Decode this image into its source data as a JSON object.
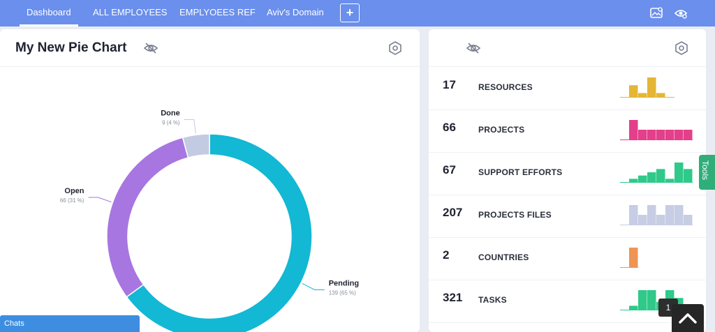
{
  "nav": {
    "tabs": [
      {
        "label": "Dashboard",
        "active": true
      },
      {
        "label": "ALL EMPLOYEES",
        "active": false
      },
      {
        "label": "EMPLYOEES REF",
        "active": false
      },
      {
        "label": "Aviv's Domain",
        "active": false
      }
    ],
    "add_tab_label": "+",
    "icons": [
      "image-settings-icon",
      "eye-settings-icon"
    ]
  },
  "pie_panel": {
    "title": "My New Pie Chart",
    "header_icons": [
      "eye-off-icon",
      "settings-hex-icon"
    ]
  },
  "chart_data": {
    "type": "pie",
    "variant": "donut",
    "slices": [
      {
        "label": "Pending",
        "value": 139,
        "percent_label": "139 (65 %)",
        "color": "#12b8d4"
      },
      {
        "label": "Open",
        "value": 66,
        "percent_label": "66 (31 %)",
        "color": "#a876e0"
      },
      {
        "label": "Done",
        "value": 9,
        "percent_label": "9 (4 %)",
        "color": "#c3cbe2"
      }
    ]
  },
  "stats_panel": {
    "header_icons": [
      "eye-off-icon",
      "settings-hex-icon"
    ],
    "rows": [
      {
        "count": "17",
        "label": "RESOURCES",
        "color": "#e5b635",
        "spark": [
          0,
          3,
          1,
          5,
          1,
          0
        ]
      },
      {
        "count": "66",
        "label": "PROJECTS",
        "color": "#e33f8a",
        "spark": [
          0,
          6,
          3,
          3,
          3,
          3,
          3,
          3
        ]
      },
      {
        "count": "67",
        "label": "SUPPORT EFFORTS",
        "color": "#2fc98a",
        "spark": [
          0,
          1,
          2,
          3,
          4,
          1,
          6,
          4
        ]
      },
      {
        "count": "207",
        "label": "PROJECTS FILES",
        "color": "#c6cde4",
        "spark": [
          0,
          4,
          2,
          4,
          2,
          4,
          4,
          2
        ]
      },
      {
        "count": "2",
        "label": "COUNTRIES",
        "color": "#ee9455",
        "spark": [
          0,
          6
        ]
      },
      {
        "count": "321",
        "label": "TASKS",
        "color": "#2fc98a",
        "spark": [
          0,
          1,
          5,
          5,
          2,
          5,
          3
        ]
      }
    ]
  },
  "tools_label": "Tools",
  "chats_label": "Chats",
  "page_badge": "1",
  "scroll_top_icon": "chevron-up-icon"
}
